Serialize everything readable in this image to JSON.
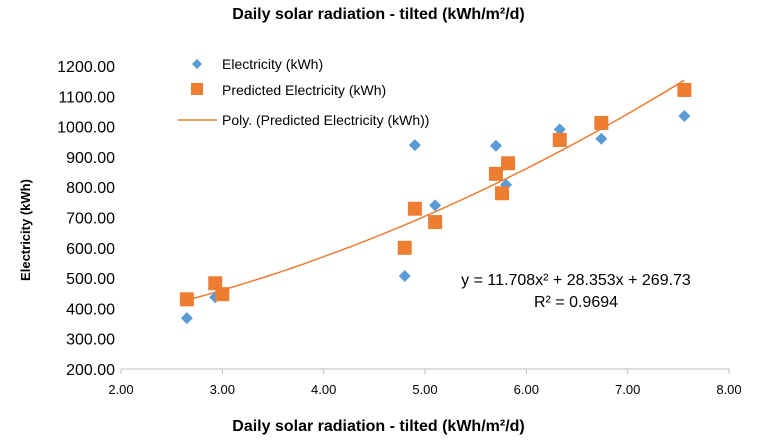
{
  "chart_data": {
    "type": "scatter",
    "title": "Daily solar radiation - tilted (kWh/m²/d)",
    "xlabel": "Daily solar radiation - tilted (kWh/m²/d)",
    "ylabel": "Electricity (kWh)",
    "xlim": [
      2.0,
      8.0
    ],
    "ylim": [
      200.0,
      1200.0
    ],
    "x_ticks": [
      "2.00",
      "3.00",
      "4.00",
      "5.00",
      "6.00",
      "7.00",
      "8.00"
    ],
    "y_ticks": [
      "200.00",
      "300.00",
      "400.00",
      "500.00",
      "600.00",
      "700.00",
      "800.00",
      "900.00",
      "1000.00",
      "1100.00",
      "1200.00"
    ],
    "legend_position": "top-left",
    "series": [
      {
        "name": "Electricity (kWh)",
        "marker": "diamond",
        "color": "#5b9bd5",
        "x": [
          2.65,
          2.93,
          3.0,
          4.8,
          4.9,
          5.1,
          5.7,
          5.8,
          6.33,
          6.74,
          7.56
        ],
        "y": [
          368,
          437,
          448,
          507,
          939,
          740,
          937,
          808,
          991,
          960,
          1035
        ]
      },
      {
        "name": "Predicted Electricity (kWh)",
        "marker": "square",
        "color": "#ed7d31",
        "x": [
          2.65,
          2.93,
          3.0,
          4.8,
          4.9,
          5.1,
          5.7,
          5.76,
          5.82,
          6.33,
          6.74,
          7.56
        ],
        "y": [
          430,
          483,
          447,
          600,
          729,
          685,
          844,
          780,
          879,
          956,
          1012,
          1121
        ]
      }
    ],
    "trendline": {
      "name": "Poly. (Predicted Electricity (kWh))",
      "color": "#ed7d31",
      "coefficients": [
        11.708,
        28.353,
        269.73
      ],
      "x_range": [
        2.65,
        7.56
      ],
      "equation": "y = 11.708x² + 28.353x + 269.73",
      "r_squared": "R² = 0.9694"
    }
  }
}
